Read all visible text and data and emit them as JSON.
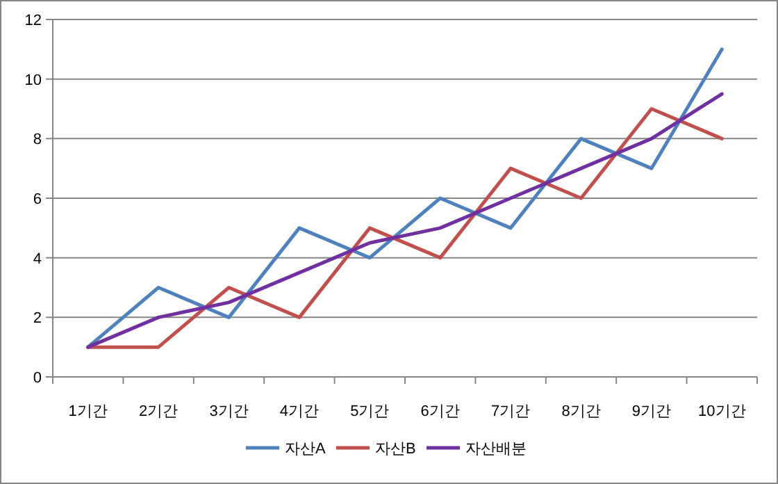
{
  "chart_data": {
    "type": "line",
    "categories": [
      "1기간",
      "2기간",
      "3기간",
      "4기간",
      "5기간",
      "6기간",
      "7기간",
      "8기간",
      "9기간",
      "10기간"
    ],
    "series": [
      {
        "name": "자산A",
        "color": "#4f81bd",
        "values": [
          1,
          3,
          2,
          5,
          4,
          6,
          5,
          8,
          7,
          11
        ]
      },
      {
        "name": "자산B",
        "color": "#c0504d",
        "values": [
          1,
          1,
          3,
          2,
          5,
          4,
          7,
          6,
          9,
          8
        ]
      },
      {
        "name": "자산배분",
        "color": "#7030a0",
        "values": [
          1,
          2,
          2.5,
          3.5,
          4.5,
          5,
          6,
          7,
          8,
          9.5
        ]
      }
    ],
    "ylim": [
      0,
      12
    ],
    "yticks": [
      0,
      2,
      4,
      6,
      8,
      10,
      12
    ],
    "grid": "y",
    "legend": "bottom",
    "marker": "none",
    "line_style": "solid"
  }
}
